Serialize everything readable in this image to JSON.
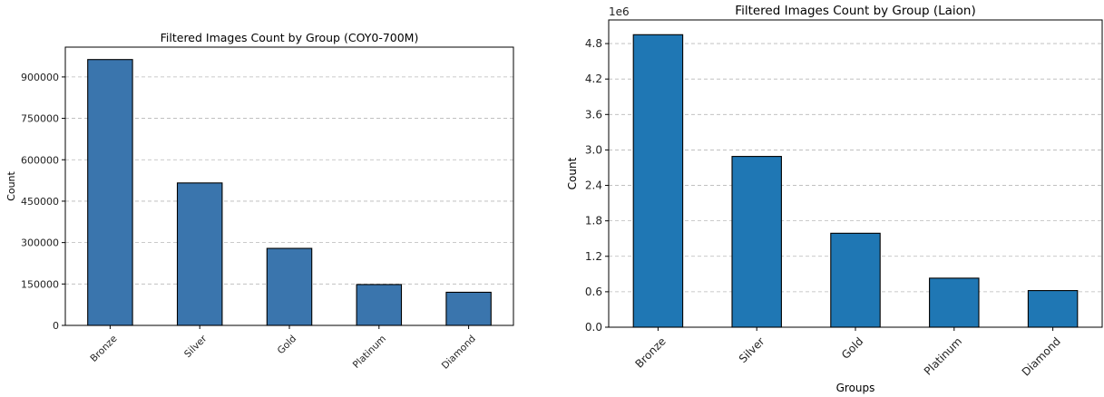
{
  "chart_data": [
    {
      "type": "bar",
      "title": "Filtered Images Count by Group (COY0-700M)",
      "xlabel": "",
      "ylabel": "Count",
      "categories": [
        "Bronze",
        "Silver",
        "Gold",
        "Platinum",
        "Diamond"
      ],
      "values": [
        963000,
        516000,
        279000,
        148000,
        120000
      ],
      "ylim": [
        0,
        1008000
      ],
      "yticks": [
        0,
        150000,
        300000,
        450000,
        600000,
        750000,
        900000
      ],
      "ytick_labels": [
        "0",
        "150000",
        "300000",
        "450000",
        "600000",
        "750000",
        "900000"
      ],
      "offset_label": "",
      "bar_color": "#3a75ad",
      "grid": "y, dashed",
      "legend": "none"
    },
    {
      "type": "bar",
      "title": "Filtered Images Count by Group (Laion)",
      "xlabel": "Groups",
      "ylabel": "Count",
      "categories": [
        "Bronze",
        "Silver",
        "Gold",
        "Platinum",
        "Diamond"
      ],
      "values": [
        4950000,
        2890000,
        1590000,
        830000,
        620000
      ],
      "ylim": [
        0,
        5200000
      ],
      "yticks": [
        0,
        600000,
        1200000,
        1800000,
        2400000,
        3000000,
        3600000,
        4200000,
        4800000
      ],
      "ytick_labels": [
        "0.0",
        "0.6",
        "1.2",
        "1.8",
        "2.4",
        "3.0",
        "3.6",
        "4.2",
        "4.8"
      ],
      "offset_label": "1e6",
      "bar_color": "#1f77b4",
      "grid": "y, dashed",
      "legend": "none"
    }
  ]
}
